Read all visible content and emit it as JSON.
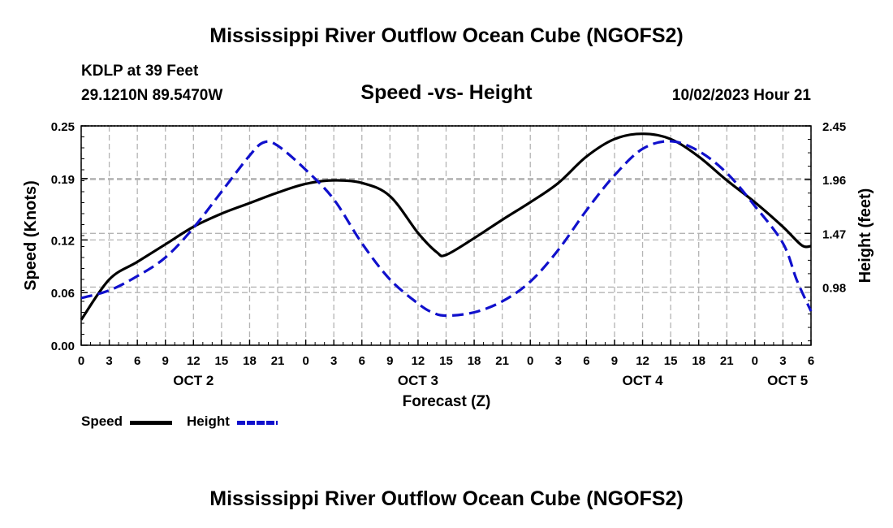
{
  "header": {
    "main_title": "Mississippi River Outflow Ocean Cube (NGOFS2)",
    "station": "KDLP at 39 Feet",
    "coords": "29.1210N  89.5470W",
    "subtitle": "Speed -vs- Height",
    "datetime": "10/02/2023 Hour 21",
    "bottom_title": "Mississippi River Outflow Ocean Cube (NGOFS2)"
  },
  "legend": {
    "speed_label": "Speed",
    "height_label": "Height"
  },
  "colors": {
    "speed": "#000000",
    "height": "#1010cc",
    "grid": "#b4b4b4"
  },
  "chart_data": {
    "type": "line",
    "xlabel": "Forecast (Z)",
    "ylabel_left": "Speed (Knots)",
    "ylabel_right": "Height (feet)",
    "xlim": [
      0,
      78
    ],
    "ylim_left": [
      0,
      0.25
    ],
    "ylim_right": [
      0.45,
      2.45
    ],
    "left_ticks": [
      0.0,
      0.06,
      0.12,
      0.19,
      0.25
    ],
    "left_tick_labels": [
      "0.00",
      "0.06",
      "0.12",
      "0.19",
      "0.25"
    ],
    "right_ticks": [
      0.98,
      1.47,
      1.96,
      2.45
    ],
    "right_tick_labels": [
      "0.98",
      "1.47",
      "1.96",
      "2.45"
    ],
    "x_ticks": [
      0,
      3,
      6,
      9,
      12,
      15,
      18,
      21,
      24,
      27,
      30,
      33,
      36,
      39,
      42,
      45,
      48,
      51,
      54,
      57,
      60,
      63,
      66,
      69,
      72,
      75,
      78
    ],
    "x_tick_labels": [
      "0",
      "3",
      "6",
      "9",
      "12",
      "15",
      "18",
      "21",
      "0",
      "3",
      "6",
      "9",
      "12",
      "15",
      "18",
      "21",
      "0",
      "3",
      "6",
      "9",
      "12",
      "15",
      "18",
      "21",
      "0",
      "3",
      "6"
    ],
    "day_labels": [
      {
        "text": "OCT 2",
        "x": 12
      },
      {
        "text": "OCT 3",
        "x": 36
      },
      {
        "text": "OCT 4",
        "x": 60
      },
      {
        "text": "OCT 5",
        "x": 75.5
      }
    ],
    "series": [
      {
        "name": "Speed",
        "axis": "left",
        "style": "solid",
        "x": [
          0,
          3,
          6,
          9,
          12,
          15,
          18,
          21,
          24,
          27,
          30,
          33,
          36,
          38,
          39,
          42,
          45,
          48,
          51,
          54,
          57,
          60,
          63,
          66,
          69,
          72,
          75,
          77,
          78
        ],
        "values": [
          0.029,
          0.075,
          0.095,
          0.115,
          0.135,
          0.15,
          0.162,
          0.174,
          0.184,
          0.188,
          0.185,
          0.17,
          0.128,
          0.106,
          0.103,
          0.122,
          0.143,
          0.163,
          0.185,
          0.215,
          0.235,
          0.241,
          0.235,
          0.215,
          0.188,
          0.163,
          0.135,
          0.114,
          0.113
        ]
      },
      {
        "name": "Height",
        "axis": "right",
        "style": "dashed",
        "x": [
          0,
          3,
          6,
          9,
          12,
          15,
          18,
          19.5,
          21,
          24,
          27,
          30,
          33,
          36,
          37.5,
          39,
          42,
          45,
          48,
          51,
          54,
          57,
          60,
          63,
          66,
          69,
          72,
          75,
          76.5,
          78
        ],
        "values": [
          0.88,
          0.95,
          1.08,
          1.25,
          1.52,
          1.85,
          2.18,
          2.3,
          2.27,
          2.05,
          1.78,
          1.38,
          1.05,
          0.83,
          0.75,
          0.72,
          0.75,
          0.85,
          1.03,
          1.32,
          1.68,
          2.0,
          2.24,
          2.31,
          2.22,
          2.02,
          1.72,
          1.38,
          1.04,
          0.76
        ]
      }
    ]
  }
}
